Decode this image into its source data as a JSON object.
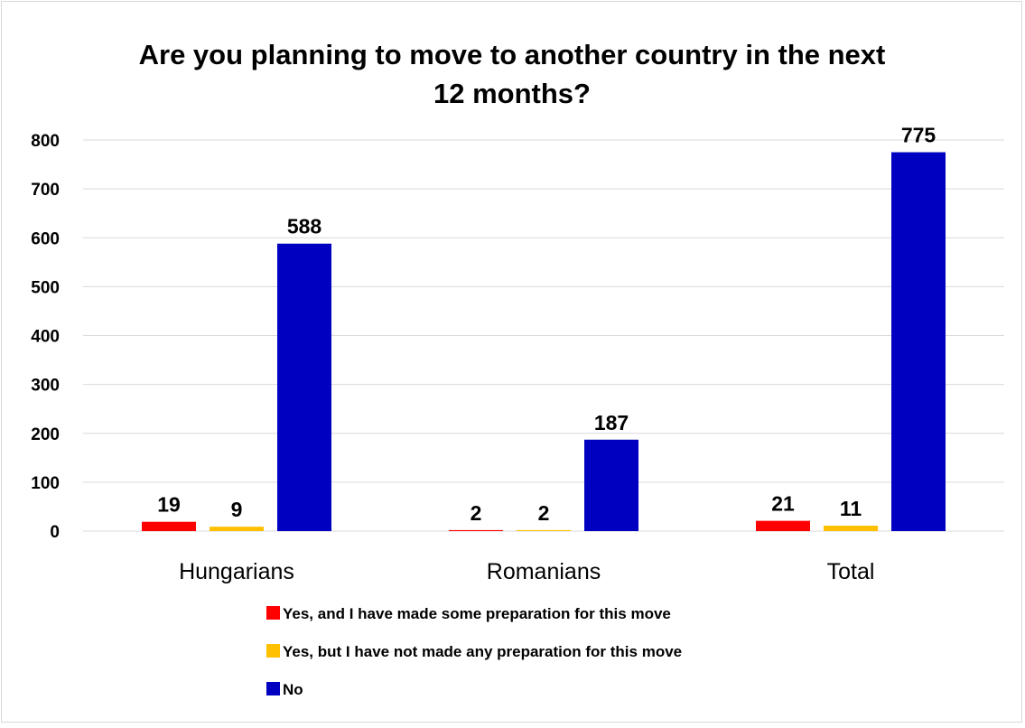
{
  "chart_data": {
    "type": "bar",
    "title_lines": [
      "Are you planning to move to another country in the next",
      "12 months?"
    ],
    "categories": [
      "Hungarians",
      "Romanians",
      "Total"
    ],
    "series": [
      {
        "name": "Yes, and I have made some preparation for this move",
        "color": "#ff0000",
        "values": [
          19,
          2,
          21
        ]
      },
      {
        "name": "Yes, but I have not made any preparation for this move",
        "color": "#ffc000",
        "values": [
          9,
          2,
          11
        ]
      },
      {
        "name": "No",
        "color": "#0000c0",
        "values": [
          588,
          187,
          775
        ]
      }
    ],
    "ylim": [
      0,
      800
    ],
    "yticks": [
      0,
      100,
      200,
      300,
      400,
      500,
      600,
      700,
      800
    ],
    "grid": true,
    "legend_position": "bottom"
  }
}
